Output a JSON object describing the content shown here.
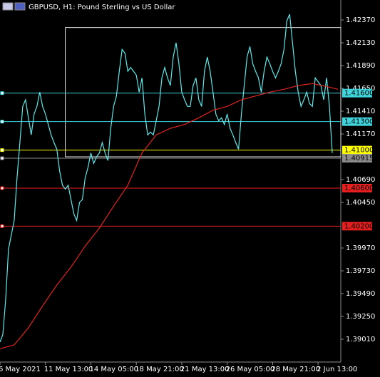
{
  "chart_data": {
    "type": "line",
    "title": "GBPUSD, H1:  Pound Sterling vs US Dollar",
    "xlim": [
      0,
      120
    ],
    "ylim": [
      1.3877,
      1.4258
    ],
    "xticks": [
      {
        "value": 0,
        "label": "6 May 2021"
      },
      {
        "value": 16,
        "label": "11 May 13:00"
      },
      {
        "value": 32,
        "label": "14 May 05:00"
      },
      {
        "value": 48,
        "label": "18 May 21:00"
      },
      {
        "value": 64,
        "label": "21 May 13:00"
      },
      {
        "value": 80,
        "label": "26 May 05:00"
      },
      {
        "value": 96,
        "label": "28 May 21:00"
      },
      {
        "value": 112,
        "label": "2 Jun 13:00"
      }
    ],
    "yticks": [
      {
        "value": 1.4237,
        "label": "1.42370"
      },
      {
        "value": 1.4213,
        "label": "1.42130"
      },
      {
        "value": 1.4189,
        "label": "1.41890"
      },
      {
        "value": 1.4165,
        "label": "1.41650"
      },
      {
        "value": 1.4141,
        "label": "1.41410"
      },
      {
        "value": 1.4117,
        "label": "1.41170"
      },
      {
        "value": 1.4069,
        "label": "1.40690"
      },
      {
        "value": 1.4045,
        "label": "1.40450"
      },
      {
        "value": 1.3997,
        "label": "1.39970"
      },
      {
        "value": 1.3973,
        "label": "1.39730"
      },
      {
        "value": 1.3949,
        "label": "1.39490"
      },
      {
        "value": 1.3925,
        "label": "1.39250"
      },
      {
        "value": 1.3901,
        "label": "1.39010"
      }
    ],
    "series": [
      {
        "color": "#5fe8ea",
        "values": [
          1.3898,
          1.3906,
          1.3943,
          1.3996,
          1.4011,
          1.4026,
          1.4071,
          1.4108,
          1.4146,
          1.4153,
          1.4134,
          1.4116,
          1.4138,
          1.4146,
          1.4161,
          1.4146,
          1.4138,
          1.4127,
          1.4116,
          1.4108,
          1.4101,
          1.4078,
          1.4063,
          1.4059,
          1.4063,
          1.4048,
          1.4033,
          1.4026,
          1.4045,
          1.4048,
          1.4071,
          1.4082,
          1.4097,
          1.4086,
          1.4093,
          1.4097,
          1.4108,
          1.4097,
          1.4089,
          1.4123,
          1.4146,
          1.4157,
          1.4183,
          1.4206,
          1.4202,
          1.4183,
          1.4187,
          1.4183,
          1.4179,
          1.4161,
          1.4176,
          1.4138,
          1.4116,
          1.4119,
          1.4116,
          1.4131,
          1.4146,
          1.4176,
          1.4187,
          1.4176,
          1.4168,
          1.4198,
          1.4213,
          1.4191,
          1.4161,
          1.4153,
          1.4146,
          1.4146,
          1.4168,
          1.4176,
          1.4153,
          1.4146,
          1.4183,
          1.4198,
          1.4183,
          1.4161,
          1.4138,
          1.4131,
          1.4134,
          1.4127,
          1.4138,
          1.4123,
          1.4116,
          1.4108,
          1.4101,
          1.4138,
          1.4168,
          1.4198,
          1.4209,
          1.4191,
          1.4183,
          1.4176,
          1.4161,
          1.4183,
          1.4198,
          1.4191,
          1.4183,
          1.4176,
          1.4183,
          1.4191,
          1.4206,
          1.4236,
          1.4243,
          1.4213,
          1.4183,
          1.4161,
          1.4146,
          1.4153,
          1.4161,
          1.4149,
          1.4146,
          1.4176,
          1.4172,
          1.4168,
          1.4153,
          1.4176,
          1.4146,
          1.4097
        ]
      },
      {
        "color": "#e0251f",
        "x": [
          0,
          5,
          10,
          15,
          20,
          25,
          30,
          35,
          40,
          45,
          50,
          55,
          60,
          65,
          70,
          75,
          80,
          85,
          90,
          95,
          100,
          105,
          110,
          115,
          119
        ],
        "values": [
          1.3891,
          1.3895,
          1.3913,
          1.3936,
          1.3958,
          1.3977,
          1.3999,
          1.4018,
          1.4041,
          1.4063,
          1.4097,
          1.4116,
          1.4123,
          1.4127,
          1.4134,
          1.4142,
          1.4146,
          1.4153,
          1.4157,
          1.4161,
          1.4164,
          1.4168,
          1.417,
          1.4167,
          1.4164
        ]
      }
    ],
    "levels": [
      {
        "value": 1.416,
        "label": "1.41600",
        "color": "#3fd3dc"
      },
      {
        "value": 1.413,
        "label": "1.41300",
        "color": "#3fd3dc"
      },
      {
        "value": 1.41,
        "label": "1.41000",
        "color": "#ffff00"
      },
      {
        "value": 1.40915,
        "label": "1.40915",
        "color": "#8c8c8c"
      },
      {
        "value": 1.406,
        "label": "1.40600",
        "color": "#e61e1e"
      },
      {
        "value": 1.402,
        "label": "1.40200",
        "color": "#e61e1e"
      }
    ],
    "rectangle": {
      "x": [
        23,
        120
      ],
      "y": [
        1.4229,
        1.4093
      ],
      "color": "#e6e6e6"
    }
  }
}
